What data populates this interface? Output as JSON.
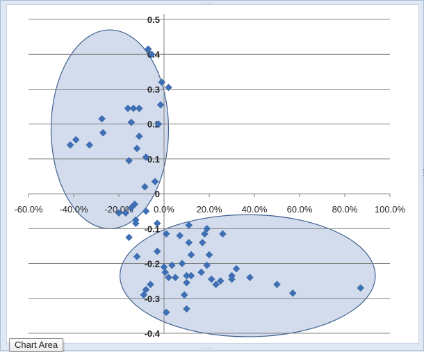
{
  "window": {
    "tooltip": "Chart Area",
    "resize_handle_glyph": "....",
    "side_handle_glyph": "⋮"
  },
  "colors": {
    "marker": "#3f6fb5",
    "grid": "#808080",
    "ellipse_fill": "#c3d0e6",
    "ellipse_stroke": "#3f5f8f",
    "background": "#ffffff"
  },
  "chart_data": {
    "type": "scatter",
    "title": "",
    "xlabel": "",
    "ylabel": "",
    "xlim": [
      -0.6,
      1.0
    ],
    "ylim": [
      -0.4,
      0.5
    ],
    "x_ticks": [
      -0.6,
      -0.4,
      -0.2,
      0.0,
      0.2,
      0.4,
      0.6,
      0.8,
      1.0
    ],
    "x_tick_labels": [
      "-60.0%",
      "-40.0%",
      "-20.0%",
      "0.0%",
      "20.0%",
      "40.0%",
      "60.0%",
      "80.0%",
      "100.0%"
    ],
    "y_ticks": [
      0.5,
      0.4,
      0.3,
      0.2,
      0.1,
      0,
      -0.1,
      -0.2,
      -0.3,
      -0.4
    ],
    "y_tick_labels": [
      "0.5",
      "0.4",
      "0.3",
      "0.2",
      "0.1",
      "0",
      "-0.1",
      "-0.2",
      "-0.3",
      "-0.4"
    ],
    "grid": "horizontal",
    "legend": "none",
    "points": [
      {
        "x": -0.415,
        "y": 0.14
      },
      {
        "x": -0.39,
        "y": 0.155
      },
      {
        "x": -0.33,
        "y": 0.14
      },
      {
        "x": -0.275,
        "y": 0.215
      },
      {
        "x": -0.27,
        "y": 0.175
      },
      {
        "x": -0.16,
        "y": 0.245
      },
      {
        "x": -0.135,
        "y": 0.245
      },
      {
        "x": -0.11,
        "y": 0.245
      },
      {
        "x": -0.145,
        "y": 0.205
      },
      {
        "x": -0.11,
        "y": 0.165
      },
      {
        "x": -0.12,
        "y": 0.13
      },
      {
        "x": -0.155,
        "y": 0.095
      },
      {
        "x": -0.08,
        "y": 0.105
      },
      {
        "x": -0.07,
        "y": 0.415
      },
      {
        "x": -0.055,
        "y": 0.4
      },
      {
        "x": -0.01,
        "y": 0.32
      },
      {
        "x": 0.02,
        "y": 0.305
      },
      {
        "x": -0.015,
        "y": 0.255
      },
      {
        "x": -0.025,
        "y": 0.2
      },
      {
        "x": -0.04,
        "y": 0.035
      },
      {
        "x": -0.085,
        "y": 0.02
      },
      {
        "x": -0.13,
        "y": -0.03
      },
      {
        "x": -0.145,
        "y": -0.04
      },
      {
        "x": -0.2,
        "y": -0.055
      },
      {
        "x": -0.17,
        "y": -0.055
      },
      {
        "x": -0.08,
        "y": -0.05
      },
      {
        "x": -0.125,
        "y": -0.075
      },
      {
        "x": -0.125,
        "y": -0.085
      },
      {
        "x": -0.03,
        "y": -0.085
      },
      {
        "x": -0.155,
        "y": -0.125
      },
      {
        "x": -0.12,
        "y": -0.18
      },
      {
        "x": -0.03,
        "y": -0.165
      },
      {
        "x": -0.08,
        "y": -0.275
      },
      {
        "x": -0.06,
        "y": -0.26
      },
      {
        "x": -0.09,
        "y": -0.29
      },
      {
        "x": 0.01,
        "y": -0.115
      },
      {
        "x": 0.07,
        "y": -0.12
      },
      {
        "x": 0.11,
        "y": -0.09
      },
      {
        "x": 0.11,
        "y": -0.14
      },
      {
        "x": 0.18,
        "y": -0.115
      },
      {
        "x": 0.19,
        "y": -0.1
      },
      {
        "x": 0.17,
        "y": -0.14
      },
      {
        "x": 0.26,
        "y": -0.115
      },
      {
        "x": 0.12,
        "y": -0.175
      },
      {
        "x": 0.2,
        "y": -0.175
      },
      {
        "x": 0.19,
        "y": -0.205
      },
      {
        "x": 0.0,
        "y": -0.21
      },
      {
        "x": 0.035,
        "y": -0.205
      },
      {
        "x": 0.08,
        "y": -0.2
      },
      {
        "x": 0.005,
        "y": -0.225
      },
      {
        "x": 0.02,
        "y": -0.24
      },
      {
        "x": 0.05,
        "y": -0.24
      },
      {
        "x": 0.1,
        "y": -0.235
      },
      {
        "x": 0.12,
        "y": -0.235
      },
      {
        "x": 0.165,
        "y": -0.225
      },
      {
        "x": 0.1,
        "y": -0.255
      },
      {
        "x": 0.21,
        "y": -0.245
      },
      {
        "x": 0.23,
        "y": -0.26
      },
      {
        "x": 0.25,
        "y": -0.25
      },
      {
        "x": 0.3,
        "y": -0.235
      },
      {
        "x": 0.32,
        "y": -0.215
      },
      {
        "x": 0.3,
        "y": -0.245
      },
      {
        "x": 0.38,
        "y": -0.24
      },
      {
        "x": 0.5,
        "y": -0.26
      },
      {
        "x": 0.57,
        "y": -0.285
      },
      {
        "x": 0.87,
        "y": -0.27
      },
      {
        "x": 0.09,
        "y": -0.29
      },
      {
        "x": 0.1,
        "y": -0.33
      },
      {
        "x": 0.01,
        "y": -0.34
      }
    ],
    "ellipses": [
      {
        "cx": -0.24,
        "cy": 0.185,
        "rx": 0.26,
        "ry": 0.285
      },
      {
        "cx": 0.37,
        "cy": -0.235,
        "rx": 0.565,
        "ry": 0.175
      }
    ]
  }
}
